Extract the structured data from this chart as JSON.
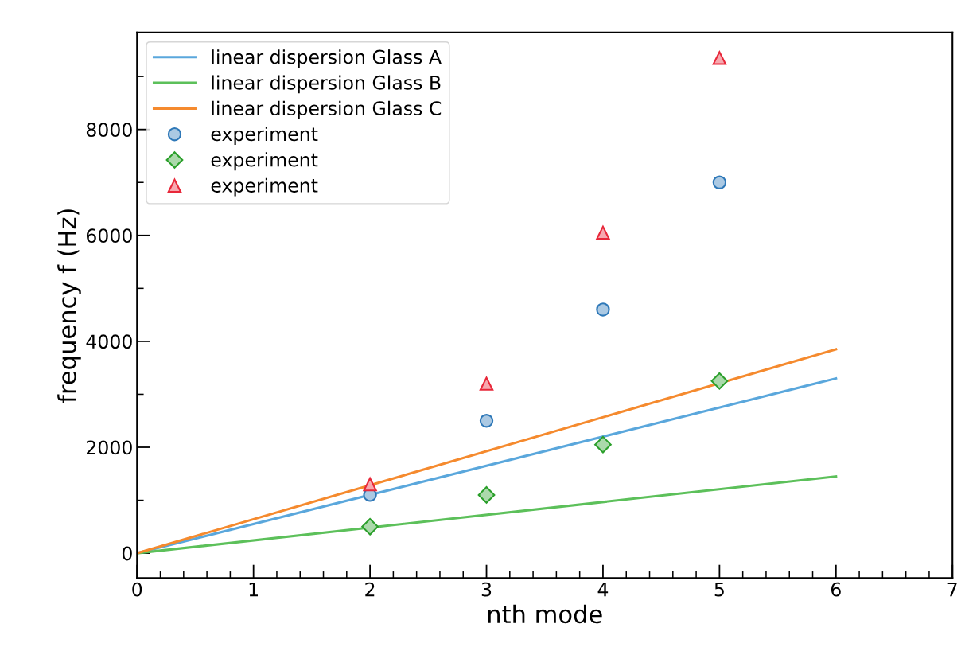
{
  "chart_data": {
    "type": "line",
    "xlabel": "nth mode",
    "ylabel": "frequency f (Hz)",
    "xlim": [
      0,
      7
    ],
    "xticks": [
      0,
      1,
      2,
      3,
      4,
      5,
      6,
      7
    ],
    "ylim": [
      -470,
      9830
    ],
    "yticks": [
      0,
      2000,
      4000,
      6000,
      8000
    ],
    "grid": false,
    "legend": "top left",
    "series": [
      {
        "name": "linear dispersion Glass A",
        "color": "#5aa7dc",
        "x": [
          0,
          6
        ],
        "values": [
          0,
          3300
        ],
        "marker": "none",
        "line_style": "solid"
      },
      {
        "name": "linear dispersion Glass B",
        "color": "#5cc05a",
        "x": [
          0,
          6
        ],
        "values": [
          0,
          1450
        ],
        "marker": "none",
        "line_style": "solid"
      },
      {
        "name": "linear dispersion Glass C",
        "color": "#f58a2e",
        "x": [
          0,
          6
        ],
        "values": [
          0,
          3850
        ],
        "marker": "none",
        "line_style": "solid"
      },
      {
        "name": "experiment",
        "type": "scatter",
        "color": "#2e78b8",
        "x": [
          2,
          3,
          4,
          5
        ],
        "values": [
          1100,
          2500,
          4600,
          7000
        ],
        "marker": "circle"
      },
      {
        "name": "experiment",
        "type": "scatter",
        "color": "#2ca02c",
        "x": [
          2,
          3,
          4,
          5
        ],
        "values": [
          500,
          1100,
          2050,
          3250
        ],
        "marker": "diamond"
      },
      {
        "name": "experiment",
        "type": "scatter",
        "color": "#e8283a",
        "x": [
          2,
          3,
          4,
          5
        ],
        "values": [
          1300,
          3200,
          6050,
          9350
        ],
        "marker": "triangle"
      }
    ]
  }
}
